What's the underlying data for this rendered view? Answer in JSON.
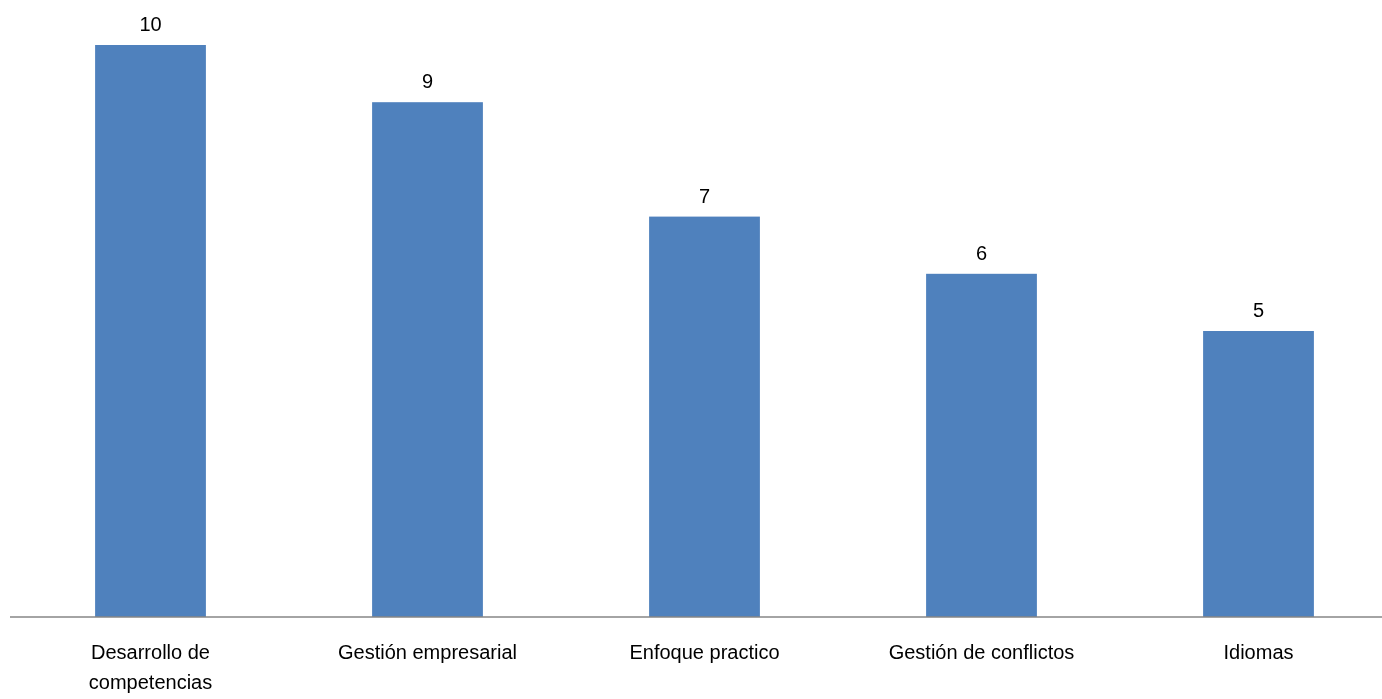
{
  "chart_data": {
    "type": "bar",
    "categories": [
      "Desarrollo de competencias",
      "Gestión empresarial",
      "Enfoque practico",
      "Gestión de conflictos",
      "Idiomas"
    ],
    "values": [
      10,
      9,
      7,
      6,
      5
    ],
    "color": "#4f81bd",
    "data_labels": true
  }
}
